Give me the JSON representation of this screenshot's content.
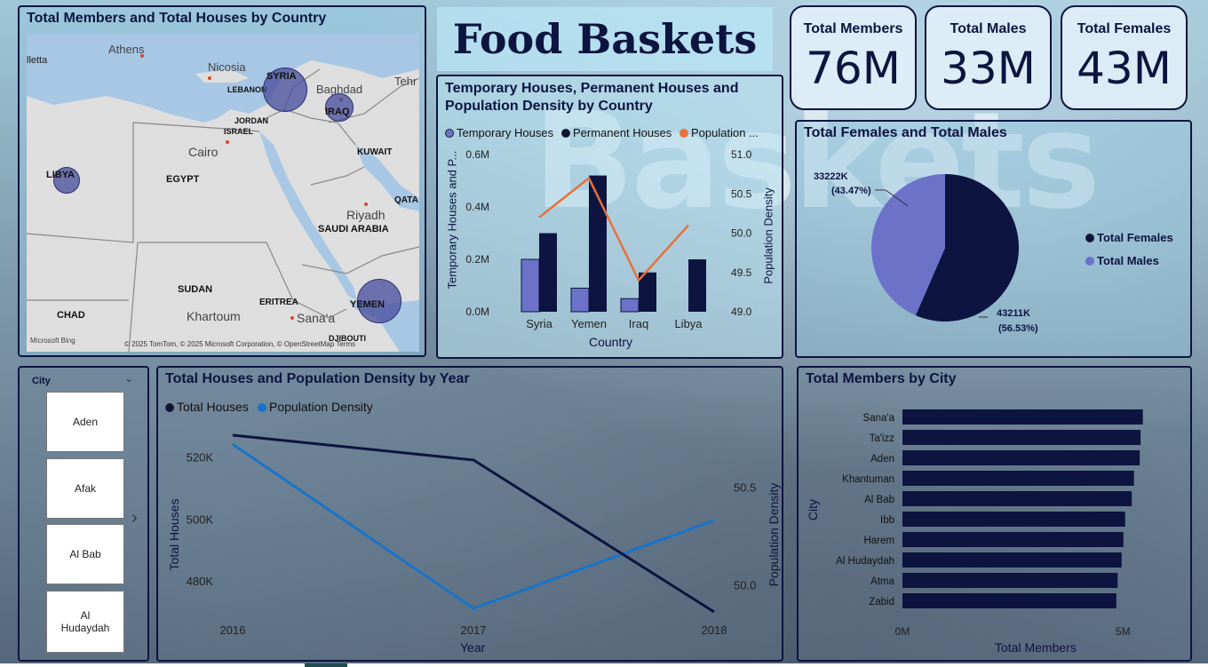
{
  "title": "Food Baskets",
  "background_word": "Baskets",
  "kpis": [
    {
      "label": "Total Members",
      "value": "76M"
    },
    {
      "label": "Total Males",
      "value": "33M"
    },
    {
      "label": "Total Females",
      "value": "43M"
    }
  ],
  "map": {
    "title": "Total Members and Total Houses by Country",
    "labels": {
      "athens": "Athens",
      "lletta": "lletta",
      "nicosia": "Nicosia",
      "lebanon": "LEBANON",
      "syria": "SYRIA",
      "baghdad": "Baghdad",
      "iraq": "IRAQ",
      "tehr": "Tehr",
      "jordan": "JORDAN",
      "israel": "ISRAEL",
      "cairo": "Cairo",
      "kuwait": "KUWAIT",
      "libya": "LIBYA",
      "egypt": "EGYPT",
      "qata": "QATA",
      "riyadh": "Riyadh",
      "saudi": "SAUDI ARABIA",
      "sudan": "SUDAN",
      "eritrea": "ERITREA",
      "chad": "CHAD",
      "khartoum": "Khartoum",
      "sanaa": "Sana'a",
      "yemen": "YEMEN",
      "djibouti": "DJIBOUTI"
    },
    "copyright": "© 2025 TomTom, © 2025 Microsoft Corporation, © OpenStreetMap  Terms",
    "bing": "Microsoft Bing"
  },
  "slicer": {
    "title": "City",
    "items": [
      "Aden",
      "Afak",
      "Al Bab",
      "Al Hudaydah"
    ]
  },
  "chart_data": [
    {
      "id": "houses_by_country",
      "type": "bar",
      "title": "Temporary Houses, Permanent Houses and Population Density by Country",
      "legend": [
        "Temporary Houses",
        "Permanent Houses",
        "Population ..."
      ],
      "categories": [
        "Syria",
        "Yemen",
        "Iraq",
        "Libya"
      ],
      "series": [
        {
          "name": "Temporary Houses",
          "values": [
            0.2,
            0.09,
            0.05,
            0
          ],
          "color": "#6b72c8"
        },
        {
          "name": "Permanent Houses",
          "values": [
            0.3,
            0.52,
            0.15,
            0.2
          ],
          "color": "#0d1440"
        },
        {
          "name": "Population Density",
          "values": [
            50.2,
            50.7,
            49.4,
            50.1
          ],
          "color": "#e8703a",
          "axis": "right"
        }
      ],
      "xlabel": "Country",
      "ylabel": "Temporary Houses and P...",
      "y2label": "Population Density",
      "yticks": [
        "0.0M",
        "0.2M",
        "0.4M",
        "0.6M"
      ],
      "y2ticks": [
        "49.0",
        "49.5",
        "50.0",
        "50.5",
        "51.0"
      ],
      "ylim": [
        0,
        0.6
      ],
      "y2lim": [
        49.0,
        51.0
      ]
    },
    {
      "id": "females_males_pie",
      "type": "pie",
      "title": "Total Females and Total Males",
      "slices": [
        {
          "name": "Total Females",
          "value": 43211,
          "label": "43211K",
          "pct": "(56.53%)",
          "color": "#0d1440"
        },
        {
          "name": "Total Males",
          "value": 33222,
          "label": "33222K",
          "pct": "(43.47%)",
          "color": "#6b72c8"
        }
      ],
      "legend": [
        "Total Females",
        "Total Males"
      ]
    },
    {
      "id": "houses_density_year",
      "type": "line",
      "title": "Total Houses and Population Density by Year",
      "legend": [
        "Total Houses",
        "Population Density"
      ],
      "x": [
        "2016",
        "2017",
        "2018"
      ],
      "series": [
        {
          "name": "Total Houses",
          "values": [
            527000,
            519000,
            470000
          ],
          "color": "#0d1440"
        },
        {
          "name": "Population Density",
          "values": [
            50.72,
            49.88,
            50.33
          ],
          "color": "#1874c9",
          "axis": "right"
        }
      ],
      "xlabel": "Year",
      "ylabel": "Total Houses",
      "y2label": "Population Density",
      "yticks": [
        "480K",
        "500K",
        "520K"
      ],
      "y2ticks": [
        "50.0",
        "50.5"
      ],
      "ylim": [
        468000,
        531000
      ],
      "y2lim": [
        49.83,
        50.83
      ]
    },
    {
      "id": "members_by_city",
      "type": "bar",
      "orientation": "horizontal",
      "title": "Total Members by City",
      "categories": [
        "Sana'a",
        "Ta'izz",
        "Aden",
        "Khantuman",
        "Al Bab",
        "Ibb",
        "Harem",
        "Al Hudaydah",
        "Atma",
        "Zabid"
      ],
      "values": [
        5.45,
        5.4,
        5.38,
        5.25,
        5.2,
        5.05,
        5.01,
        4.97,
        4.88,
        4.85
      ],
      "xlabel": "Total Members",
      "ylabel": "City",
      "xticks": [
        "0M",
        "5M"
      ],
      "xlim": [
        0,
        5.7
      ],
      "color": "#0d1440"
    }
  ]
}
